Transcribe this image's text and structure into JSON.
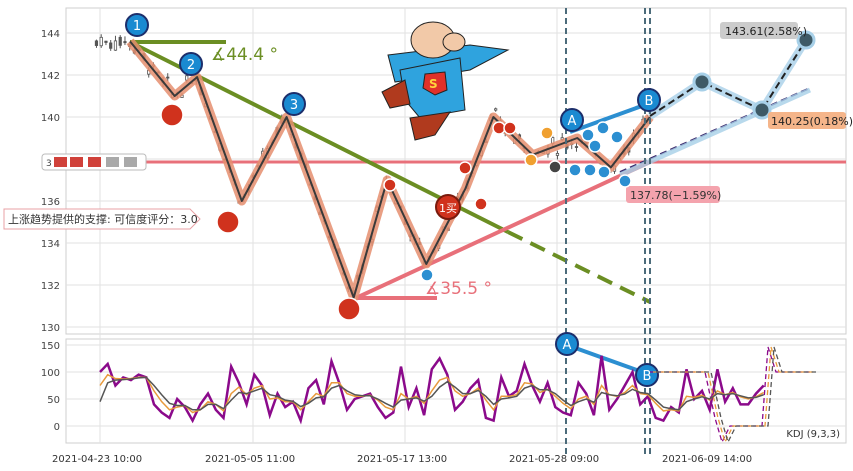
{
  "chart_data": [
    {
      "type": "candlestick",
      "y_ticks": [
        130,
        132,
        134,
        136,
        138,
        140,
        142,
        144
      ],
      "ylim": [
        129.8,
        145.2
      ],
      "x_tick_labels": [
        "2021-04-23 10:00",
        "2021-05-05 11:00",
        "2021-05-17 13:00",
        "2021-05-28 09:00",
        "2021-06-09 14:00"
      ],
      "grid": true,
      "horizontal_line": {
        "value": 137.6,
        "label": "3"
      },
      "price_path": [
        {
          "x": 0,
          "y": 143.6
        },
        {
          "x": 8,
          "y": 141.0
        },
        {
          "x": 12,
          "y": 141.9
        },
        {
          "x": 20,
          "y": 136.0
        },
        {
          "x": 28,
          "y": 140.0
        },
        {
          "x": 40,
          "y": 131.4
        },
        {
          "x": 46,
          "y": 137.0
        },
        {
          "x": 53,
          "y": 133.0
        },
        {
          "x": 60,
          "y": 136.6
        },
        {
          "x": 65,
          "y": 140.0
        },
        {
          "x": 72,
          "y": 138.2
        },
        {
          "x": 80,
          "y": 139.0
        },
        {
          "x": 86,
          "y": 137.6
        },
        {
          "x": 93,
          "y": 140.0
        }
      ],
      "angles": [
        {
          "text": "∡44.4 °"
        },
        {
          "text": "∡35.5 °"
        }
      ],
      "wave_labels": [
        "1",
        "2",
        "3",
        "A",
        "B",
        "1买"
      ],
      "support_label": "上涨趋势提供的支撑: 可信度评分：3.0",
      "targets": [
        {
          "text": "143.61(2.58%)",
          "value": 143.61
        },
        {
          "text": "140.25(0.18%)",
          "value": 140.25
        },
        {
          "text": "137.78(−1.59%)",
          "value": 137.78
        }
      ]
    },
    {
      "type": "line",
      "y_ticks": [
        0,
        50,
        100,
        150
      ],
      "ylim": [
        -35,
        160
      ],
      "legend": "KDJ (9,3,3)",
      "wave_labels": [
        "A",
        "B"
      ],
      "series": [
        {
          "color": "#8b0a8b",
          "values": [
            100,
            115,
            75,
            90,
            85,
            95,
            90,
            40,
            25,
            15,
            50,
            35,
            10,
            40,
            60,
            30,
            15,
            110,
            80,
            40,
            95,
            75,
            20,
            60,
            35,
            45,
            10,
            70,
            85,
            40,
            120,
            80,
            30,
            50,
            55,
            60,
            35,
            15,
            25,
            110,
            35,
            70,
            20,
            105,
            125,
            95,
            30,
            45,
            70,
            85,
            15,
            10,
            90,
            55,
            65,
            115,
            75,
            45,
            80,
            35,
            25,
            20,
            80,
            60,
            20,
            130,
            30,
            50,
            75,
            100,
            40,
            55,
            15,
            10,
            35,
            25,
            105,
            50,
            65,
            30,
            105,
            45,
            70,
            40,
            40,
            60,
            75,
            140,
            100,
            100,
            100,
            100,
            100
          ]
        },
        {
          "color": "#e89a3c",
          "values": [
            75,
            95,
            88,
            87,
            88,
            90,
            90,
            65,
            45,
            30,
            35,
            38,
            25,
            30,
            45,
            40,
            28,
            60,
            72,
            58,
            70,
            75,
            50,
            52,
            45,
            45,
            30,
            45,
            60,
            55,
            80,
            80,
            60,
            55,
            55,
            57,
            48,
            35,
            30,
            60,
            50,
            55,
            42,
            65,
            85,
            90,
            65,
            55,
            60,
            70,
            48,
            30,
            55,
            55,
            58,
            80,
            78,
            62,
            68,
            55,
            42,
            32,
            50,
            55,
            40,
            75,
            58,
            55,
            62,
            75,
            60,
            58,
            42,
            28,
            30,
            28,
            55,
            53,
            57,
            48,
            65,
            58,
            62,
            54,
            50,
            54,
            62,
            90,
            95,
            98,
            100,
            100,
            100
          ]
        },
        {
          "color": "#555555",
          "values": [
            45,
            80,
            85,
            86,
            87,
            89,
            90,
            75,
            58,
            42,
            38,
            38,
            30,
            30,
            40,
            40,
            32,
            48,
            62,
            60,
            65,
            70,
            58,
            55,
            48,
            46,
            36,
            42,
            52,
            54,
            70,
            75,
            65,
            58,
            56,
            56,
            50,
            42,
            35,
            48,
            50,
            52,
            46,
            55,
            72,
            82,
            72,
            60,
            60,
            66,
            55,
            40,
            50,
            52,
            55,
            70,
            75,
            67,
            67,
            60,
            48,
            38,
            45,
            50,
            44,
            62,
            58,
            56,
            59,
            68,
            62,
            60,
            48,
            35,
            32,
            30,
            45,
            50,
            54,
            50,
            60,
            58,
            60,
            56,
            52,
            53,
            58,
            78,
            88,
            94,
            98,
            100,
            100
          ]
        }
      ]
    }
  ]
}
